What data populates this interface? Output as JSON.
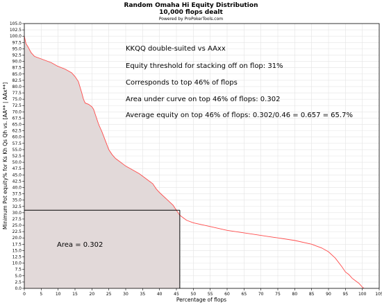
{
  "chart_data": {
    "type": "area",
    "title": "Random Omaha Hi Equity Distribution",
    "subtitle": "10,000 flops dealt",
    "credit": "Powered by ProPokerTools.com",
    "xlabel": "Percentage of flops",
    "ylabel": "Minimum Pot equity% for Ks Kh Qs Qh vs. [AA** | AAx**]",
    "xlim": [
      0,
      105
    ],
    "ylim": [
      0,
      105
    ],
    "x_ticks": [
      "0",
      "5",
      "10",
      "15",
      "20",
      "25",
      "30",
      "35",
      "40",
      "45",
      "50",
      "55",
      "60",
      "65",
      "70",
      "75",
      "80",
      "85",
      "90",
      "95",
      "100",
      "105"
    ],
    "y_ticks": [
      "0.0",
      "2.5",
      "5.0",
      "7.5",
      "10.0",
      "12.5",
      "15.0",
      "17.5",
      "20.0",
      "22.5",
      "25.0",
      "27.5",
      "30.0",
      "32.5",
      "35.0",
      "37.5",
      "40.0",
      "42.5",
      "45.0",
      "47.5",
      "50.0",
      "52.5",
      "55.0",
      "57.5",
      "60.0",
      "62.5",
      "65.0",
      "67.5",
      "70.0",
      "72.5",
      "75.0",
      "77.5",
      "80.0",
      "82.5",
      "85.0",
      "87.5",
      "90.0",
      "92.5",
      "95.0",
      "97.5",
      "100.0",
      "102.5",
      "105.0"
    ],
    "grid": true,
    "line_color": "#ff4a4a",
    "fill_color": "#e2d9d9",
    "x": [
      0,
      0.5,
      1,
      2,
      3,
      4,
      6,
      8,
      10,
      12,
      14,
      15,
      16,
      17,
      17.5,
      18,
      19,
      20,
      20.5,
      21,
      22,
      23,
      24,
      25,
      26,
      27,
      28,
      30,
      32,
      34,
      36,
      38,
      39,
      40,
      42,
      44,
      45,
      46,
      47,
      48,
      50,
      55,
      60,
      65,
      70,
      75,
      80,
      85,
      88,
      90,
      92,
      94,
      95,
      96,
      97,
      98,
      99,
      100,
      100.5
    ],
    "values": [
      100,
      97,
      96,
      93.5,
      92,
      91.5,
      90.5,
      89.5,
      88,
      87,
      85.5,
      84,
      82,
      77.5,
      75,
      73.5,
      73,
      72,
      71,
      69,
      65,
      62,
      58.5,
      55,
      53,
      51.5,
      50.5,
      48.5,
      47,
      45.5,
      43.5,
      41.5,
      39.5,
      38,
      35.5,
      33,
      31,
      29,
      28,
      27,
      26,
      24.5,
      23,
      22,
      21,
      20,
      19,
      17.5,
      16,
      14.5,
      12,
      8.5,
      6.5,
      5.5,
      4,
      3,
      2,
      0.5,
      0
    ],
    "area_cutoff_x": 46,
    "area_cutoff_y": 31
  },
  "annotations": {
    "line1": "KKQQ double-suited vs AAxx",
    "line2": "Equity threshold for stacking off on flop: 31%",
    "line3": "Corresponds to top 46% of flops",
    "line4": "Area under curve on top 46% of flops: 0.302",
    "line5": "Average equity on top 46% of flops: 0.302/0.46 = 0.657 = 65.7%",
    "area_label": "Area = 0.302"
  }
}
